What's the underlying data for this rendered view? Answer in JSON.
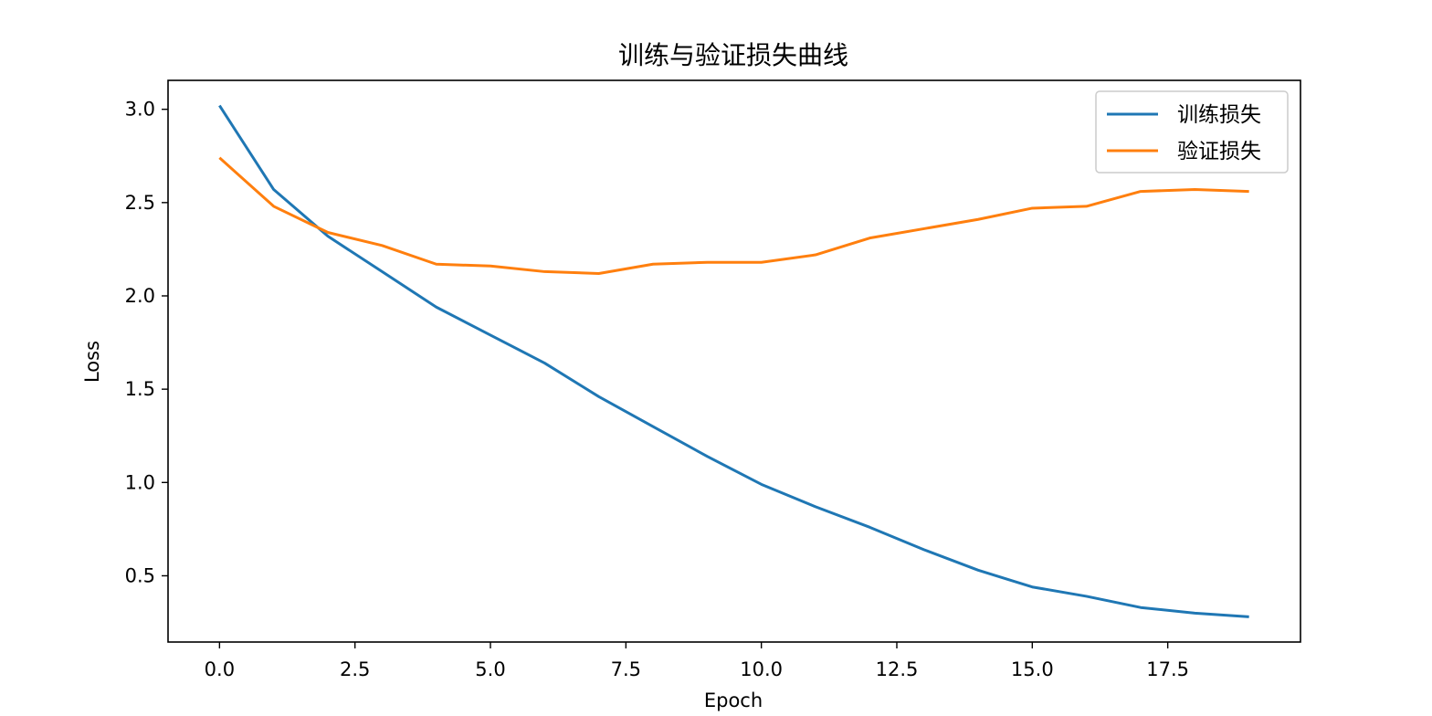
{
  "chart_data": {
    "type": "line",
    "title": "训练与验证损失曲线",
    "xlabel": "Epoch",
    "ylabel": "Loss",
    "xlim": [
      -0.95,
      19.95
    ],
    "ylim": [
      0.145,
      3.155
    ],
    "xticks": [
      0.0,
      2.5,
      5.0,
      7.5,
      10.0,
      12.5,
      15.0,
      17.5
    ],
    "xtick_labels": [
      "0.0",
      "2.5",
      "5.0",
      "7.5",
      "10.0",
      "12.5",
      "15.0",
      "17.5"
    ],
    "yticks": [
      0.5,
      1.0,
      1.5,
      2.0,
      2.5,
      3.0
    ],
    "ytick_labels": [
      "0.5",
      "1.0",
      "1.5",
      "2.0",
      "2.5",
      "3.0"
    ],
    "grid": false,
    "legend_position": "upper right",
    "x": [
      0,
      1,
      2,
      3,
      4,
      5,
      6,
      7,
      8,
      9,
      10,
      11,
      12,
      13,
      14,
      15,
      16,
      17,
      18,
      19
    ],
    "series": [
      {
        "name": "训练损失",
        "color": "#1f77b4",
        "values": [
          3.02,
          2.57,
          2.32,
          2.13,
          1.94,
          1.79,
          1.64,
          1.46,
          1.3,
          1.14,
          0.99,
          0.87,
          0.76,
          0.64,
          0.53,
          0.44,
          0.39,
          0.33,
          0.3,
          0.28
        ]
      },
      {
        "name": "验证损失",
        "color": "#ff7f0e",
        "values": [
          2.74,
          2.48,
          2.34,
          2.27,
          2.17,
          2.16,
          2.13,
          2.12,
          2.17,
          2.18,
          2.18,
          2.22,
          2.31,
          2.36,
          2.41,
          2.47,
          2.48,
          2.56,
          2.57,
          2.56
        ]
      }
    ]
  }
}
